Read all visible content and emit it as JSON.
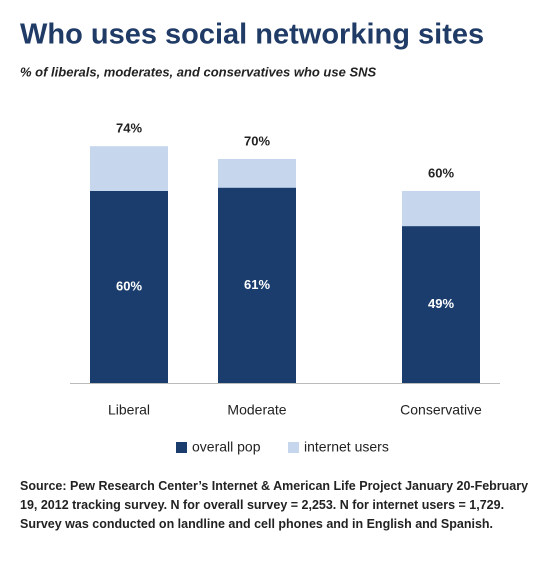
{
  "chart_data": {
    "type": "bar",
    "title": "Who uses social networking sites",
    "subtitle": "% of liberals, moderates, and conservatives who use SNS",
    "categories": [
      "Liberal",
      "Moderate",
      "Conservative"
    ],
    "series": [
      {
        "name": "overall pop",
        "color": "#1b3d6d",
        "values": [
          60,
          61,
          49
        ],
        "value_labels": [
          "60%",
          "61%",
          "49%"
        ]
      },
      {
        "name": "internet users",
        "color": "#c6d6ec",
        "values": [
          74,
          70,
          60
        ],
        "value_labels": [
          "74%",
          "70%",
          "60%"
        ]
      }
    ],
    "source": "Source: Pew Research Center’s Internet & American Life Project January 20-February 19, 2012 tracking survey. N for overall survey = 2,253. N for internet users = 1,729. Survey was conducted on landline and cell phones and in English and Spanish."
  }
}
